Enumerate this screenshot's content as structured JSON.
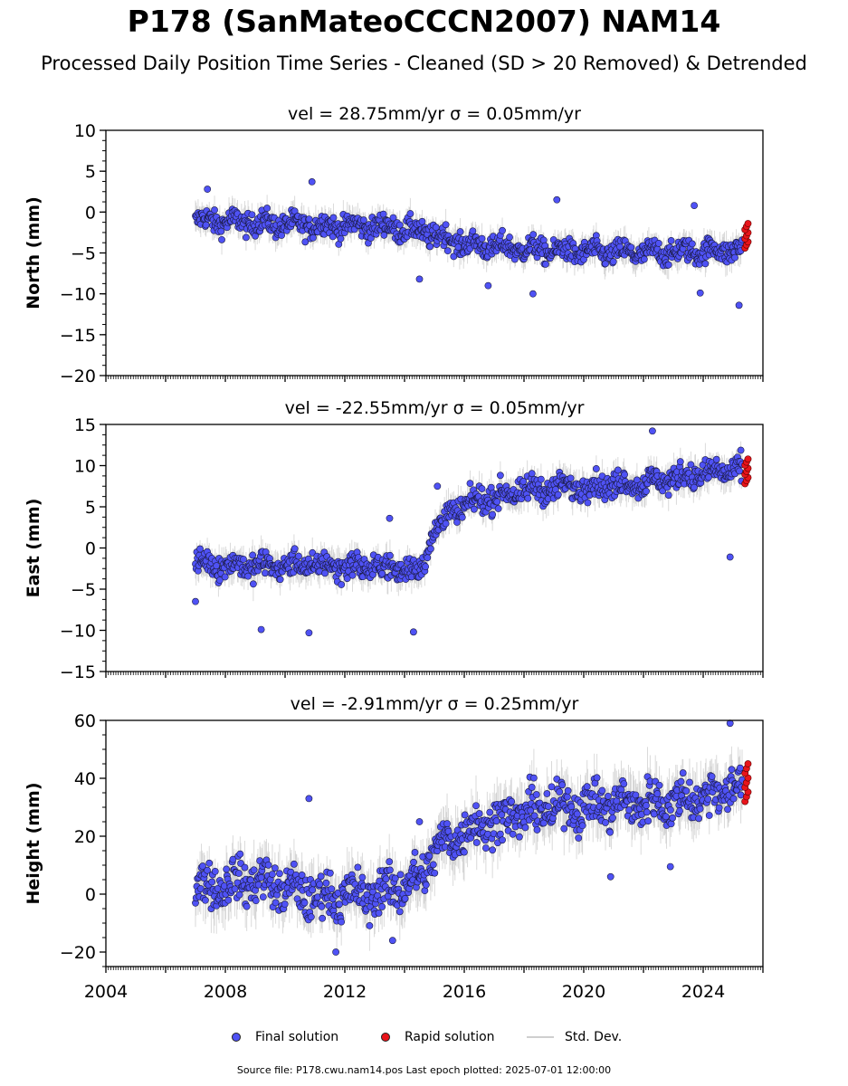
{
  "title": "P178 (SanMateoCCCN2007) NAM14",
  "subtitle": "Processed Daily Position Time Series - Cleaned (SD > 20 Removed) & Detrended",
  "chart_data": [
    {
      "type": "scatter",
      "title": "vel = 28.75mm/yr   σ = 0.05mm/yr",
      "ylabel": "North (mm)",
      "xlim": [
        2004,
        2026
      ],
      "ylim": [
        -20,
        10
      ],
      "yticks": [
        10,
        5,
        0,
        -5,
        -10,
        -15,
        -20
      ],
      "xticks": [],
      "trend": [
        [
          2007.0,
          -1.0
        ],
        [
          2010.5,
          -1.6
        ],
        [
          2013.5,
          -1.8
        ],
        [
          2014.8,
          -2.6
        ],
        [
          2016.0,
          -3.9
        ],
        [
          2018.0,
          -4.5
        ],
        [
          2020.0,
          -4.9
        ],
        [
          2022.0,
          -5.0
        ],
        [
          2025.3,
          -4.6
        ]
      ],
      "noise": 1.3,
      "outliers": [
        [
          2010.9,
          3.7
        ],
        [
          2007.4,
          2.8
        ],
        [
          2019.1,
          1.5
        ],
        [
          2023.7,
          0.8
        ],
        [
          2025.2,
          -11.4
        ],
        [
          2018.3,
          -10.0
        ],
        [
          2014.5,
          -8.2
        ],
        [
          2016.8,
          -9.0
        ],
        [
          2023.9,
          -9.9
        ]
      ],
      "rapid": [
        2025.4,
        2025.45,
        2025.5
      ],
      "rapid_range": [
        -4.4,
        -1.4
      ]
    },
    {
      "type": "scatter",
      "title": "vel = -22.55mm/yr   σ = 0.05mm/yr",
      "ylabel": "East (mm)",
      "xlim": [
        2004,
        2026
      ],
      "ylim": [
        -15,
        15
      ],
      "yticks": [
        15,
        10,
        5,
        0,
        -5,
        -10,
        -15
      ],
      "xticks": [],
      "trend": [
        [
          2007.0,
          -1.9
        ],
        [
          2009.0,
          -2.2
        ],
        [
          2011.0,
          -2.1
        ],
        [
          2013.0,
          -2.3
        ],
        [
          2014.5,
          -2.7
        ],
        [
          2015.0,
          2.0
        ],
        [
          2015.5,
          4.2
        ],
        [
          2016.5,
          5.8
        ],
        [
          2018.0,
          7.0
        ],
        [
          2020.0,
          7.5
        ],
        [
          2022.0,
          7.9
        ],
        [
          2024.0,
          9.0
        ],
        [
          2025.3,
          9.6
        ]
      ],
      "noise": 1.4,
      "outliers": [
        [
          2010.8,
          -10.3
        ],
        [
          2014.3,
          -10.2
        ],
        [
          2009.2,
          -9.9
        ],
        [
          2022.3,
          14.2
        ],
        [
          2024.9,
          -1.1
        ],
        [
          2013.5,
          3.6
        ],
        [
          2015.1,
          7.5
        ],
        [
          2007.0,
          -6.5
        ]
      ],
      "rapid": [
        2025.4,
        2025.45,
        2025.5
      ],
      "rapid_range": [
        7.8,
        10.8
      ]
    },
    {
      "type": "scatter",
      "title": "vel = -2.91mm/yr   σ = 0.25mm/yr",
      "ylabel": "Height (mm)",
      "xlim": [
        2004,
        2026
      ],
      "ylim": [
        -25,
        60
      ],
      "yticks": [
        60,
        40,
        20,
        0,
        -20
      ],
      "xticks": [
        "2004",
        "2008",
        "2012",
        "2016",
        "2020",
        "2024"
      ],
      "trend": [
        [
          2007.0,
          2.0
        ],
        [
          2009.0,
          5.0
        ],
        [
          2011.0,
          -1.0
        ],
        [
          2013.0,
          0.0
        ],
        [
          2014.5,
          5.0
        ],
        [
          2015.0,
          15.0
        ],
        [
          2016.0,
          22.0
        ],
        [
          2017.5,
          27.0
        ],
        [
          2019.0,
          30.0
        ],
        [
          2021.0,
          31.0
        ],
        [
          2023.0,
          32.0
        ],
        [
          2024.5,
          35.0
        ],
        [
          2025.3,
          38.0
        ]
      ],
      "noise": 7.0,
      "outliers": [
        [
          2010.8,
          33.0
        ],
        [
          2011.7,
          -20.0
        ],
        [
          2013.6,
          -16.0
        ],
        [
          2024.9,
          59.0
        ],
        [
          2022.9,
          9.5
        ],
        [
          2020.9,
          6.0
        ],
        [
          2014.5,
          25.0
        ]
      ],
      "rapid": [
        2025.4,
        2025.45,
        2025.5
      ],
      "rapid_range": [
        32.0,
        45.0
      ]
    }
  ],
  "legend": {
    "final": "Final solution",
    "rapid": "Rapid solution",
    "std": "Std. Dev."
  },
  "colors": {
    "final": "#4f52f5",
    "rapid": "#e8141a",
    "std": "#bdbdbd"
  },
  "source": "Source file: P178.cwu.nam14.pos  Last epoch plotted: 2025-07-01 12:00:00"
}
